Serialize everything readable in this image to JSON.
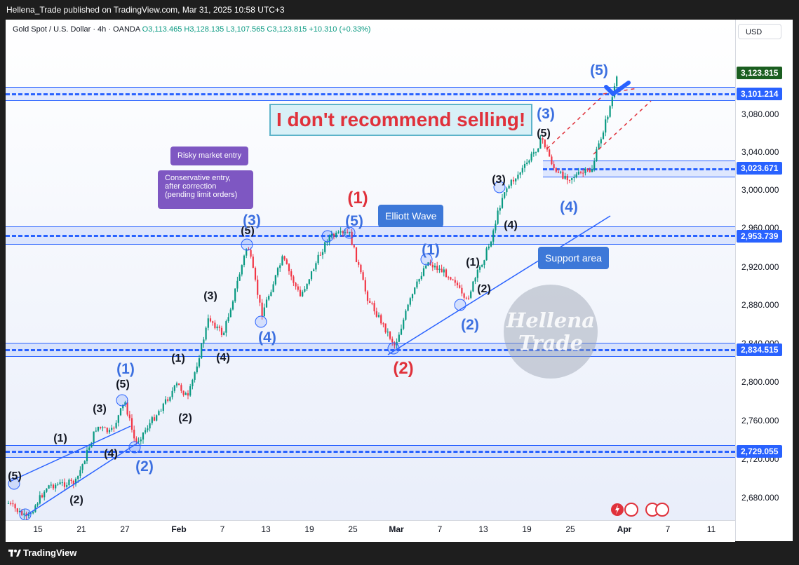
{
  "header": {
    "publish_line": "Hellena_Trade published on TradingView.com, Mar 31, 2025 10:58 UTC+3"
  },
  "symbol_legend": {
    "name": "Gold Spot / U.S. Dollar · 4h · OANDA",
    "ohlc": "O3,113.465  H3,128.135  L3,107.565  C3,123.815  +10.310 (+0.33%)"
  },
  "currency_button": "USD",
  "price_axis": {
    "ticks": [
      "3,080.000",
      "3,040.000",
      "3,000.000",
      "2,960.000",
      "2,920.000",
      "2,880.000",
      "2,840.000",
      "2,800.000",
      "2,760.000",
      "2,720.000",
      "2,680.000"
    ],
    "current_price": "3,123.815",
    "levels": [
      "3,101.214",
      "3,023.671",
      "2,953.739",
      "2,834.515",
      "2,729.055"
    ]
  },
  "time_axis": [
    "15",
    "21",
    "27",
    "Feb",
    "7",
    "13",
    "19",
    "25",
    "Mar",
    "7",
    "13",
    "19",
    "25",
    "Apr",
    "7",
    "11"
  ],
  "annotations": {
    "banner": "I don't recommend selling!",
    "risky_entry": "Risky market entry",
    "conservative_entry": "Conservative entry, after correction (pending limit orders)",
    "elliott_wave": "Elliott Wave",
    "support_area": "Support area",
    "watermark_top": "Hellena",
    "watermark_bottom": "Trade"
  },
  "wave_labels": {
    "black": [
      "(5)",
      "(1)",
      "(2)",
      "(3)",
      "(4)",
      "(5)",
      "(1)",
      "(2)",
      "(3)",
      "(4)",
      "(5)",
      "(1)",
      "(2)",
      "(3)",
      "(4)",
      "(5)"
    ],
    "blue": [
      "(1)",
      "(2)",
      "(3)",
      "(4)",
      "(5)",
      "(1)",
      "(2)",
      "(3)",
      "(4)",
      "(5)"
    ],
    "red": [
      "(1)",
      "(2)"
    ]
  },
  "footer": {
    "brand": "TradingView"
  },
  "colors": {
    "up": "#089981",
    "down": "#f23645",
    "zone": "#2962ff",
    "current_price_bg": "#1b5e20",
    "level_bg": "#2962ff",
    "warning": "#e0313b"
  }
}
